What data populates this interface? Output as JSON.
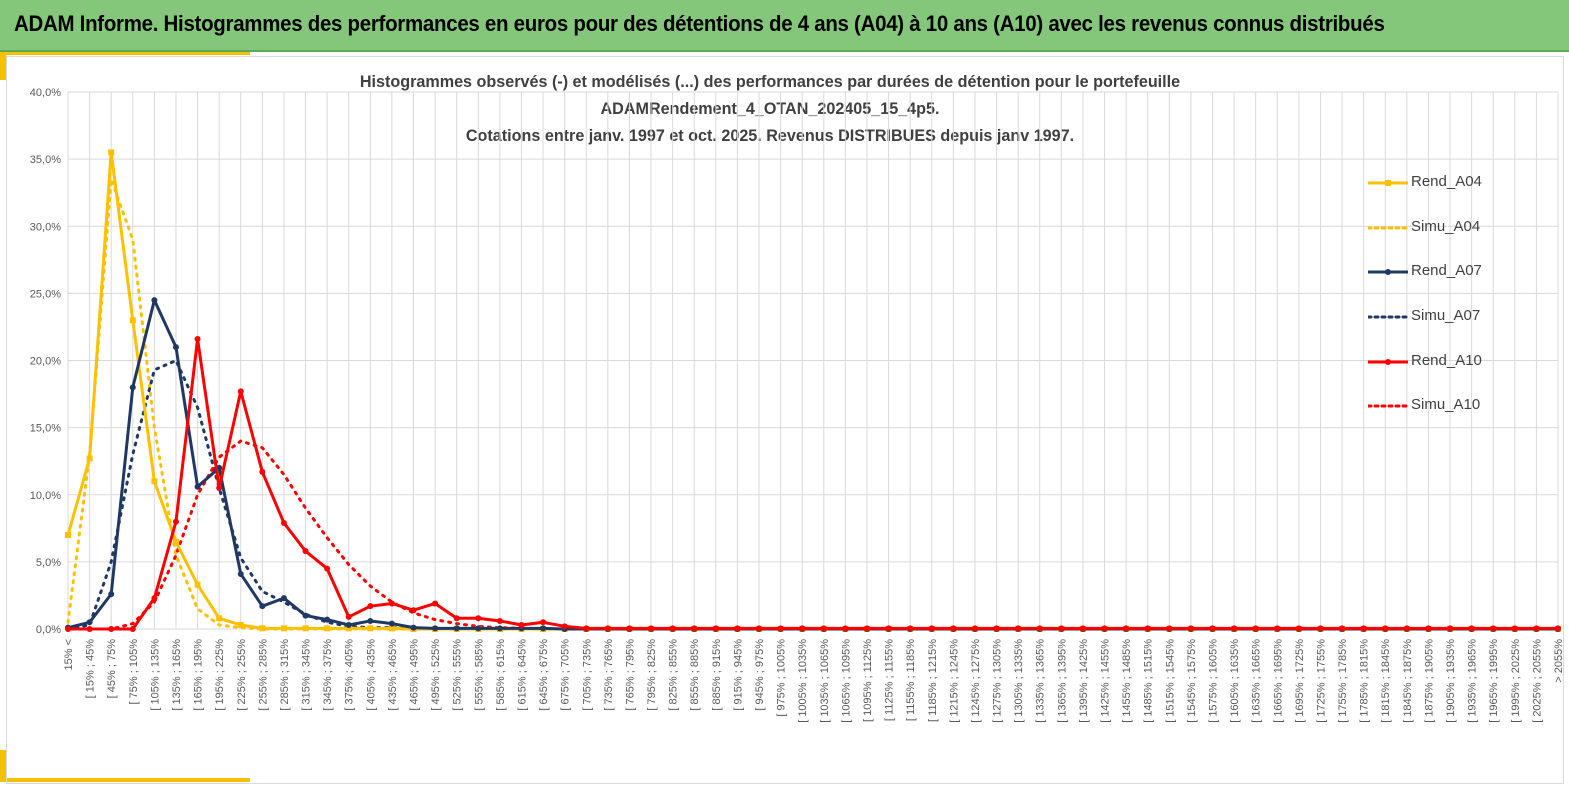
{
  "banner": {
    "title": "ADAM Informe. Histogrammes des performances en euros pour des détentions de 4 ans (A04) à 10 ans (A10) avec les revenus connus distribués"
  },
  "chart_title": {
    "line1": "Histogrammes observés (-) et modélisés (...) des performances par durées de détention pour le portefeuille",
    "line2": "ADAMRendement_4_OTAN_202405_15_4p5.",
    "line3": "Cotations entre janv. 1997 et oct. 2025. Revenus DISTRIBUES depuis janv 1997."
  },
  "colors": {
    "yellow": "#FFC000",
    "navy": "#1F3864",
    "red": "#FF0000",
    "banner": "#84c77a",
    "grid": "#d9d9d9"
  },
  "chart_data": {
    "type": "line",
    "ylim": [
      0,
      40
    ],
    "y_ticks": [
      "0,0%",
      "5,0%",
      "10,0%",
      "15,0%",
      "20,0%",
      "25,0%",
      "30,0%",
      "35,0%",
      "40,0%"
    ],
    "categories": [
      "15% <",
      "[ 15% ; 45%",
      "[ 45% ; 75%",
      "[ 75% ; 105%",
      "[ 105% ; 135%",
      "[ 135% ; 165%",
      "[ 165% ; 195%",
      "[ 195% ; 225%",
      "[ 225% ; 255%",
      "[ 255% ; 285%",
      "[ 285% ; 315%",
      "[ 315% ; 345%",
      "[ 345% ; 375%",
      "[ 375% ; 405%",
      "[ 405% ; 435%",
      "[ 435% ; 465%",
      "[ 465% ; 495%",
      "[ 495% ; 525%",
      "[ 525% ; 555%",
      "[ 555% ; 585%",
      "[ 585% ; 615%",
      "[ 615% ; 645%",
      "[ 645% ; 675%",
      "[ 675% ; 705%",
      "[ 705% ; 735%",
      "[ 735% ; 765%",
      "[ 765% ; 795%",
      "[ 795% ; 825%",
      "[ 825% ; 855%",
      "[ 855% ; 885%",
      "[ 885% ; 915%",
      "[ 915% ; 945%",
      "[ 945% ; 975%",
      "[ 975% ; 1005%",
      "[ 1005% ; 1035%",
      "[ 1035% ; 1065%",
      "[ 1065% ; 1095%",
      "[ 1095% ; 1125%",
      "[ 1125% ; 1155%",
      "[ 1155% ; 1185%",
      "[ 1185% ; 1215%",
      "[ 1215% ; 1245%",
      "[ 1245% ; 1275%",
      "[ 1275% ; 1305%",
      "[ 1305% ; 1335%",
      "[ 1335% ; 1365%",
      "[ 1365% ; 1395%",
      "[ 1395% ; 1425%",
      "[ 1425% ; 1455%",
      "[ 1455% ; 1485%",
      "[ 1485% ; 1515%",
      "[ 1515% ; 1545%",
      "[ 1545% ; 1575%",
      "[ 1575% ; 1605%",
      "[ 1605% ; 1635%",
      "[ 1635% ; 1665%",
      "[ 1665% ; 1695%",
      "[ 1695% ; 1725%",
      "[ 1725% ; 1755%",
      "[ 1755% ; 1785%",
      "[ 1785% ; 1815%",
      "[ 1815% ; 1845%",
      "[ 1845% ; 1875%",
      "[ 1875% ; 1905%",
      "[ 1905% ; 1935%",
      "[ 1935% ; 1965%",
      "[ 1965% ; 1995%",
      "[ 1995% ; 2025%",
      "[ 2025% ; 2055%",
      "> 2055%"
    ],
    "series": [
      {
        "name": "Rend_A04",
        "style": "solid-square",
        "color": "#FFC000",
        "values": [
          7.0,
          12.7,
          35.5,
          23.0,
          11.0,
          6.5,
          3.3,
          0.8,
          0.3,
          0.05,
          0.05,
          0.05,
          0.05,
          0.05,
          0.05,
          0.05,
          0,
          0,
          0,
          0,
          0,
          0,
          0,
          0,
          0,
          0,
          0,
          0,
          0,
          0,
          0,
          0,
          0,
          0,
          0,
          0,
          0,
          0,
          0,
          0,
          0,
          0,
          0,
          0,
          0,
          0,
          0,
          0,
          0,
          0,
          0,
          0,
          0,
          0,
          0,
          0,
          0,
          0,
          0,
          0,
          0,
          0,
          0,
          0,
          0,
          0,
          0,
          0,
          0,
          0
        ]
      },
      {
        "name": "Simu_A04",
        "style": "dotted",
        "color": "#FFC000",
        "values": [
          0.5,
          13.0,
          33.5,
          29.0,
          15.0,
          5.5,
          1.5,
          0.3,
          0.1,
          0,
          0,
          0,
          0,
          0,
          0,
          0,
          0,
          0,
          0,
          0,
          0,
          0,
          0,
          0,
          0,
          0,
          0,
          0,
          0,
          0,
          0,
          0,
          0,
          0,
          0,
          0,
          0,
          0,
          0,
          0,
          0,
          0,
          0,
          0,
          0,
          0,
          0,
          0,
          0,
          0,
          0,
          0,
          0,
          0,
          0,
          0,
          0,
          0,
          0,
          0,
          0,
          0,
          0,
          0,
          0,
          0,
          0,
          0,
          0,
          0
        ]
      },
      {
        "name": "Rend_A07",
        "style": "solid-dot",
        "color": "#1F3864",
        "values": [
          0.1,
          0.5,
          2.6,
          18.0,
          24.5,
          21.0,
          10.6,
          12.0,
          4.1,
          1.7,
          2.3,
          1.0,
          0.7,
          0.3,
          0.6,
          0.4,
          0.1,
          0.05,
          0.05,
          0.05,
          0.05,
          0.05,
          0.05,
          0,
          0,
          0,
          0,
          0,
          0,
          0,
          0,
          0,
          0,
          0,
          0,
          0,
          0,
          0,
          0,
          0,
          0,
          0,
          0,
          0,
          0,
          0,
          0,
          0,
          0,
          0,
          0,
          0,
          0,
          0,
          0,
          0,
          0,
          0,
          0,
          0,
          0,
          0,
          0,
          0,
          0,
          0,
          0,
          0,
          0,
          0
        ]
      },
      {
        "name": "Simu_A07",
        "style": "dotted",
        "color": "#1F3864",
        "values": [
          0,
          0.3,
          5.0,
          13.0,
          19.3,
          20.0,
          16.5,
          10.5,
          5.3,
          2.8,
          2.0,
          1.1,
          0.5,
          0.2,
          0.1,
          0.1,
          0,
          0,
          0,
          0,
          0,
          0,
          0,
          0,
          0,
          0,
          0,
          0,
          0,
          0,
          0,
          0,
          0,
          0,
          0,
          0,
          0,
          0,
          0,
          0,
          0,
          0,
          0,
          0,
          0,
          0,
          0,
          0,
          0,
          0,
          0,
          0,
          0,
          0,
          0,
          0,
          0,
          0,
          0,
          0,
          0,
          0,
          0,
          0,
          0,
          0,
          0,
          0,
          0,
          0
        ]
      },
      {
        "name": "Rend_A10",
        "style": "solid-dot",
        "color": "#FF0000",
        "values": [
          0,
          0,
          0,
          0,
          2.3,
          8.0,
          21.6,
          10.5,
          17.7,
          11.7,
          7.9,
          5.8,
          4.5,
          0.9,
          1.7,
          1.9,
          1.4,
          1.9,
          0.8,
          0.8,
          0.6,
          0.3,
          0.5,
          0.2,
          0.05,
          0.05,
          0.05,
          0.05,
          0.05,
          0.05,
          0.05,
          0.05,
          0.05,
          0.05,
          0.05,
          0.05,
          0.05,
          0.05,
          0.05,
          0.05,
          0.05,
          0.05,
          0.05,
          0.05,
          0.05,
          0.05,
          0.05,
          0.05,
          0.05,
          0.05,
          0.05,
          0.05,
          0.05,
          0.05,
          0.05,
          0.05,
          0.05,
          0.05,
          0.05,
          0.05,
          0.05,
          0.05,
          0.05,
          0.05,
          0.05,
          0.05,
          0.05,
          0.05,
          0.05,
          0.05
        ]
      },
      {
        "name": "Simu_A10",
        "style": "dotted",
        "color": "#FF0000",
        "values": [
          0,
          0,
          0,
          0.4,
          2.0,
          5.5,
          10.0,
          12.8,
          14.0,
          13.5,
          11.5,
          9.0,
          6.8,
          4.8,
          3.2,
          2.0,
          1.2,
          0.7,
          0.4,
          0.2,
          0.1,
          0.05,
          0,
          0,
          0,
          0,
          0,
          0,
          0,
          0,
          0,
          0,
          0,
          0,
          0,
          0,
          0,
          0,
          0,
          0,
          0,
          0,
          0,
          0,
          0,
          0,
          0,
          0,
          0,
          0,
          0,
          0,
          0,
          0,
          0,
          0,
          0,
          0,
          0,
          0,
          0,
          0,
          0,
          0,
          0,
          0,
          0,
          0,
          0,
          0
        ]
      }
    ]
  }
}
